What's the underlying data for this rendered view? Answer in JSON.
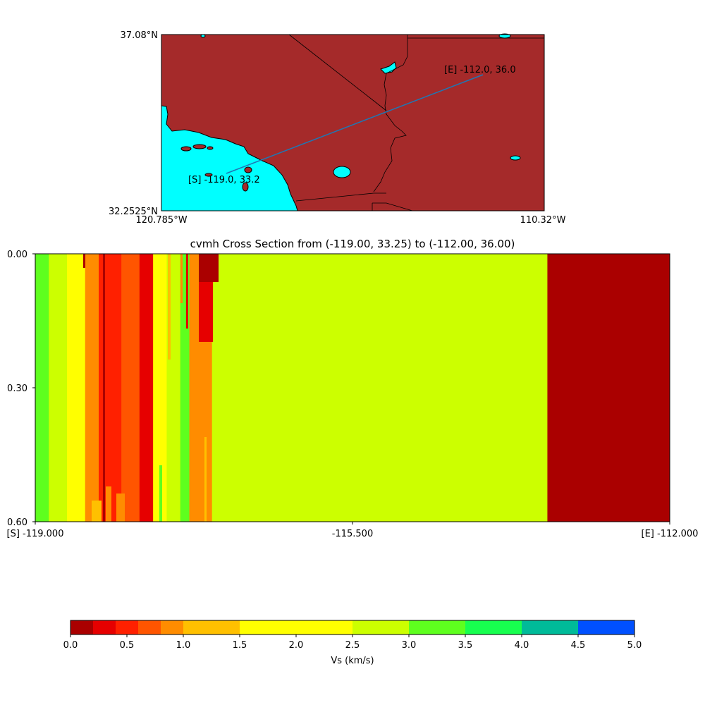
{
  "map": {
    "lat_top_label": "37.08°N",
    "lat_bottom_label": "32.2525°N",
    "lon_left_label": "120.785°W",
    "lon_right_label": "110.32°W",
    "start_label": "[S] -119.0, 33.2",
    "end_label": "[E] -112.0, 36.0",
    "land_color": "#a52a2a",
    "ocean_color": "#00ffff",
    "line_color": "#1f77b4"
  },
  "chart_data": [
    {
      "type": "heatmap",
      "title": "cvmh Cross Section from (-119.00, 33.25) to (-112.00, 36.00)",
      "x_ticks": [
        "[S] -119.000",
        "-115.500",
        "[E] -112.000"
      ],
      "y_ticks": [
        "0.00",
        "0.30",
        "0.60"
      ],
      "xlim": [
        -119.0,
        -112.0
      ],
      "ylim": [
        0.6,
        0.0
      ],
      "columns": [
        {
          "x0": -119.0,
          "x1": -118.85,
          "vs": 3.2
        },
        {
          "x0": -118.85,
          "x1": -118.65,
          "vs": 2.7
        },
        {
          "x0": -118.65,
          "x1": -118.45,
          "vs": 1.8
        },
        {
          "x0": -118.45,
          "x1": -118.3,
          "vs": 0.9
        },
        {
          "x0": -118.3,
          "x1": -118.05,
          "vs": 0.5
        },
        {
          "x0": -118.05,
          "x1": -117.85,
          "vs": 0.7
        },
        {
          "x0": -117.85,
          "x1": -117.7,
          "vs": 0.3
        },
        {
          "x0": -117.7,
          "x1": -117.55,
          "vs": 2.0
        },
        {
          "x0": -117.55,
          "x1": -117.4,
          "vs": 2.7
        },
        {
          "x0": -117.4,
          "x1": -117.3,
          "vs": 3.2
        },
        {
          "x0": -117.3,
          "x1": -117.05,
          "vs": 0.9
        },
        {
          "x0": -117.05,
          "x1": -113.35,
          "vs": 2.8
        },
        {
          "x0": -113.35,
          "x1": -112.0,
          "vs": 0.1
        }
      ]
    },
    {
      "type": "colorbar",
      "xlabel": "Vs (km/s)",
      "ticks": [
        "0.0",
        "0.5",
        "1.0",
        "1.5",
        "2.0",
        "2.5",
        "3.0",
        "3.5",
        "4.0",
        "4.5",
        "5.0"
      ],
      "boundaries": [
        0.0,
        0.2,
        0.4,
        0.6,
        0.8,
        1.0,
        1.5,
        2.5,
        3.0,
        3.5,
        4.0,
        4.5,
        5.0
      ],
      "colors": [
        "#aa0000",
        "#e60000",
        "#ff2000",
        "#ff5500",
        "#ff8c00",
        "#ffc000",
        "#ffff00",
        "#ccff00",
        "#5eff1e",
        "#17ff4f",
        "#00bb99",
        "#0050ff"
      ]
    }
  ]
}
